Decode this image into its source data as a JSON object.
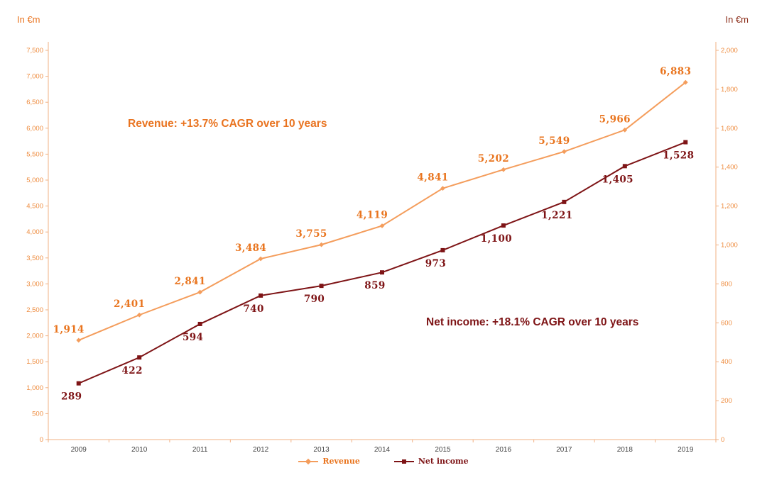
{
  "chart_data": {
    "type": "line",
    "x": [
      "2009",
      "2010",
      "2011",
      "2012",
      "2013",
      "2014",
      "2015",
      "2016",
      "2017",
      "2018",
      "2019"
    ],
    "series": [
      {
        "name": "Revenue",
        "axis": "left",
        "line_color": "#f49d5c",
        "label_color": "#e9751f",
        "marker": "diamond",
        "label_position": "above",
        "values": [
          1914,
          2401,
          2841,
          3484,
          3755,
          4119,
          4841,
          5202,
          5549,
          5966,
          6883
        ]
      },
      {
        "name": "Net income",
        "axis": "right",
        "line_color": "#7e1416",
        "label_color": "#7e1416",
        "marker": "square",
        "label_position": "below",
        "values": [
          289,
          422,
          594,
          740,
          790,
          859,
          973,
          1100,
          1221,
          1405,
          1528
        ]
      }
    ],
    "left_axis": {
      "title": "In €m",
      "min": 0,
      "max": 7500,
      "step": 500,
      "text_color": "#ee8c3f",
      "title_color": "#e9731f",
      "line_color": "#f2b183"
    },
    "right_axis": {
      "title": "In €m",
      "min": 0,
      "max": 2000,
      "step": 200,
      "text_color": "#ee8c3f",
      "title_color": "#8c2f1b",
      "line_color": "#f2b183"
    },
    "x_axis": {
      "text_color": "#454545"
    },
    "annotations": [
      {
        "text": "Revenue: +13.7% CAGR over 10 years",
        "color": "#e9731f"
      },
      {
        "text": "Net income: +18.1% CAGR over 10 years",
        "color": "#7e1416"
      }
    ],
    "legend_position": "bottom-center",
    "grid": false
  }
}
